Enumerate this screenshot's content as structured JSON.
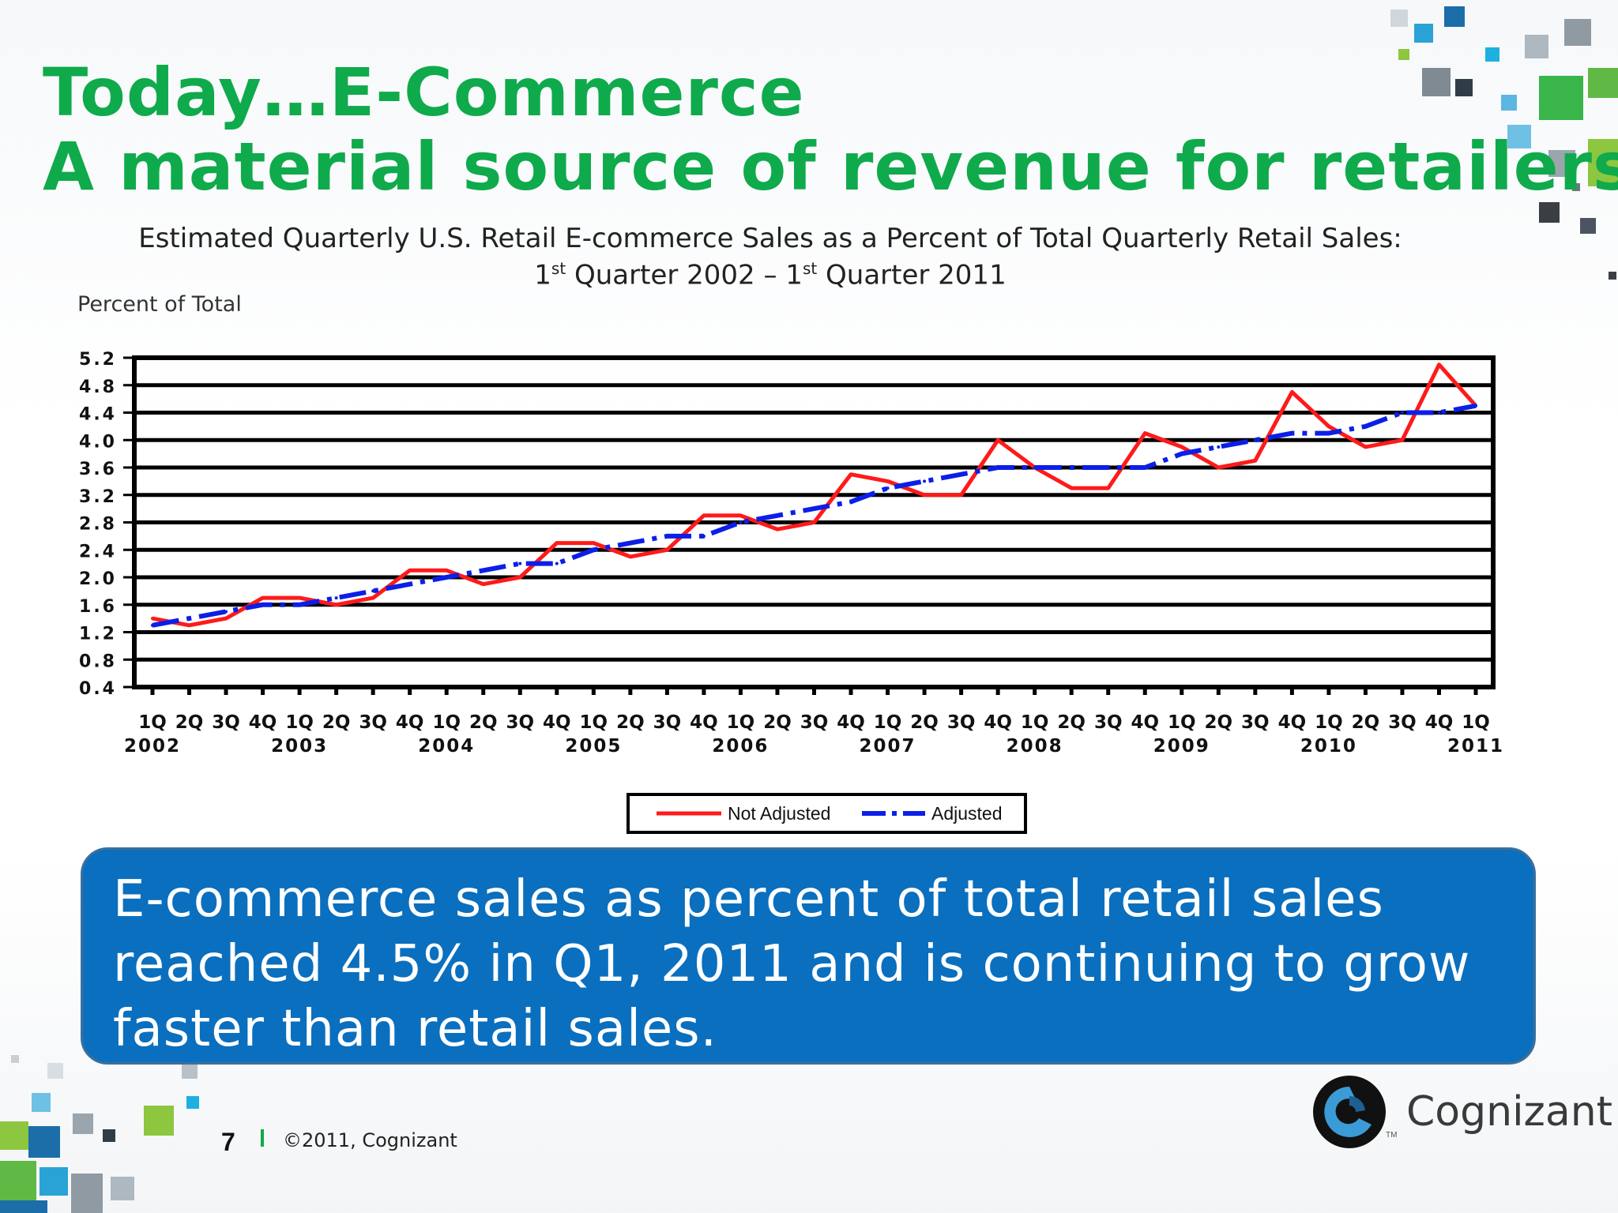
{
  "slide": {
    "title_line1": "Today…E-Commerce",
    "title_line2": "A material source of revenue for retailers",
    "callout": "E-commerce sales as percent of total retail sales reached 4.5% in Q1, 2011 and is continuing to grow faster than retail sales.",
    "page_number": "7",
    "copyright": "©2011, Cognizant",
    "logo_text": "Cognizant",
    "logo_tm": "TM"
  },
  "colors": {
    "title_green": "#0faa4b",
    "callout_blue": "#0a6fbe",
    "not_adjusted": "#ff1a1a",
    "adjusted": "#0b1fe8"
  },
  "chart_data": {
    "type": "line",
    "title_line1": "Estimated Quarterly U.S. Retail E-commerce Sales as a Percent of Total Quarterly Retail Sales:",
    "title_line2_parts": [
      "1",
      "st",
      " Quarter 2002 – 1",
      "st",
      " Quarter 2011"
    ],
    "ylabel": "Percent of Total",
    "ylim": [
      0.4,
      5.2
    ],
    "yticks": [
      "5.2",
      "4.8",
      "4.4",
      "4.0",
      "3.6",
      "3.2",
      "2.8",
      "2.4",
      "2.0",
      "1.6",
      "1.2",
      "0.8",
      "0.4"
    ],
    "quarter_labels": [
      "1Q",
      "2Q",
      "3Q",
      "4Q",
      "1Q",
      "2Q",
      "3Q",
      "4Q",
      "1Q",
      "2Q",
      "3Q",
      "4Q",
      "1Q",
      "2Q",
      "3Q",
      "4Q",
      "1Q",
      "2Q",
      "3Q",
      "4Q",
      "1Q",
      "2Q",
      "3Q",
      "4Q",
      "1Q",
      "2Q",
      "3Q",
      "4Q",
      "1Q",
      "2Q",
      "3Q",
      "4Q",
      "1Q",
      "2Q",
      "3Q",
      "4Q",
      "1Q"
    ],
    "year_labels": [
      {
        "label": "2002",
        "index": 0
      },
      {
        "label": "2003",
        "index": 4
      },
      {
        "label": "2004",
        "index": 8
      },
      {
        "label": "2005",
        "index": 12
      },
      {
        "label": "2006",
        "index": 16
      },
      {
        "label": "2007",
        "index": 20
      },
      {
        "label": "2008",
        "index": 24
      },
      {
        "label": "2009",
        "index": 28
      },
      {
        "label": "2010",
        "index": 32
      },
      {
        "label": "2011",
        "index": 36
      }
    ],
    "series": [
      {
        "name": "Not Adjusted",
        "style": "solid",
        "values": [
          1.4,
          1.3,
          1.4,
          1.7,
          1.7,
          1.6,
          1.7,
          2.1,
          2.1,
          1.9,
          2.0,
          2.5,
          2.5,
          2.3,
          2.4,
          2.9,
          2.9,
          2.7,
          2.8,
          3.5,
          3.4,
          3.2,
          3.2,
          4.0,
          3.6,
          3.3,
          3.3,
          4.1,
          3.9,
          3.6,
          3.7,
          4.7,
          4.2,
          3.9,
          4.0,
          5.1,
          4.5
        ]
      },
      {
        "name": "Adjusted",
        "style": "dash-dot",
        "values": [
          1.3,
          1.4,
          1.5,
          1.6,
          1.6,
          1.7,
          1.8,
          1.9,
          2.0,
          2.1,
          2.2,
          2.2,
          2.4,
          2.5,
          2.6,
          2.6,
          2.8,
          2.9,
          3.0,
          3.1,
          3.3,
          3.4,
          3.5,
          3.6,
          3.6,
          3.6,
          3.6,
          3.6,
          3.8,
          3.9,
          4.0,
          4.1,
          4.1,
          4.2,
          4.4,
          4.4,
          4.5
        ]
      }
    ],
    "legend": [
      "Not Adjusted",
      "Adjusted"
    ],
    "legend_position": "bottom-center",
    "grid": true
  }
}
